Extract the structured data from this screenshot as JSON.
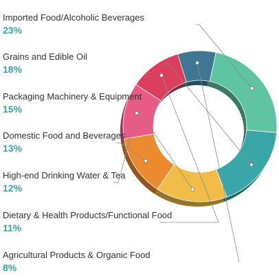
{
  "chart_data": {
    "type": "pie",
    "style": "donut-3d",
    "categories": [
      "Imported Food/Alcoholic Beverages",
      "Grains and Edible Oil",
      "Packaging Machinery & Equipment",
      "Domestic Food and Beverages",
      "High-end Drinking Water & Tea",
      "Dietary & Health Products/Functional Food",
      "Agricultural Products & Organic Food"
    ],
    "values": [
      23,
      18,
      15,
      13,
      12,
      11,
      8
    ],
    "value_labels": [
      "23%",
      "18%",
      "15%",
      "13%",
      "12%",
      "11%",
      "8%"
    ],
    "colors": [
      "#5ec4a1",
      "#3aa6a8",
      "#f1bc47",
      "#ec8a30",
      "#ea5a86",
      "#dc3f5e",
      "#3f7793"
    ],
    "legend_position": "left"
  }
}
